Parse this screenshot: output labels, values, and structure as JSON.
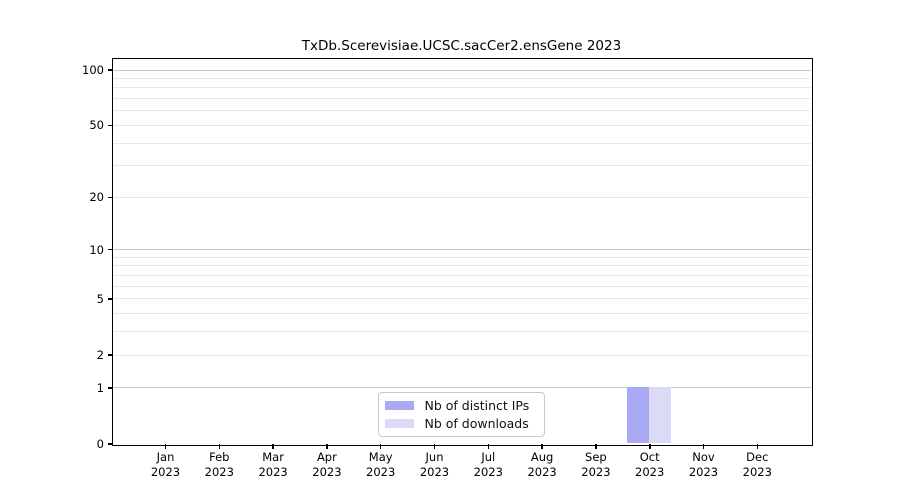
{
  "chart_data": {
    "type": "bar",
    "title": "TxDb.Scerevisiae.UCSC.sacCer2.ensGene 2023",
    "xlabel": "",
    "ylabel": "",
    "categories": [
      "Jan",
      "Feb",
      "Mar",
      "Apr",
      "May",
      "Jun",
      "Jul",
      "Aug",
      "Sep",
      "Oct",
      "Nov",
      "Dec"
    ],
    "category_year": "2023",
    "series": [
      {
        "name": "Nb of distinct IPs",
        "color": "#a9a9f4",
        "values": [
          0,
          0,
          0,
          0,
          0,
          0,
          0,
          0,
          0,
          1,
          0,
          0
        ]
      },
      {
        "name": "Nb of downloads",
        "color": "#dbdbf7",
        "values": [
          0,
          0,
          0,
          0,
          0,
          0,
          0,
          0,
          0,
          1,
          0,
          0
        ]
      }
    ],
    "yaxis": {
      "scale": "log1p",
      "ticks": [
        0,
        1,
        2,
        5,
        10,
        20,
        50,
        100
      ],
      "major_gridlines": [
        1,
        10,
        100
      ],
      "minor_gridlines": [
        2,
        3,
        4,
        5,
        6,
        7,
        8,
        9,
        20,
        30,
        40,
        50,
        60,
        70,
        80,
        90
      ],
      "ylim": [
        0,
        115
      ]
    },
    "grid": true,
    "legend": {
      "position": "bottom-center",
      "entries": [
        "Nb of distinct IPs",
        "Nb of downloads"
      ]
    },
    "colors": {
      "background": "#ffffff",
      "spine": "#000000",
      "major_grid": "#c9c9c9",
      "minor_grid": "#e9e9e9",
      "legend_border": "#c9c9c9"
    }
  }
}
